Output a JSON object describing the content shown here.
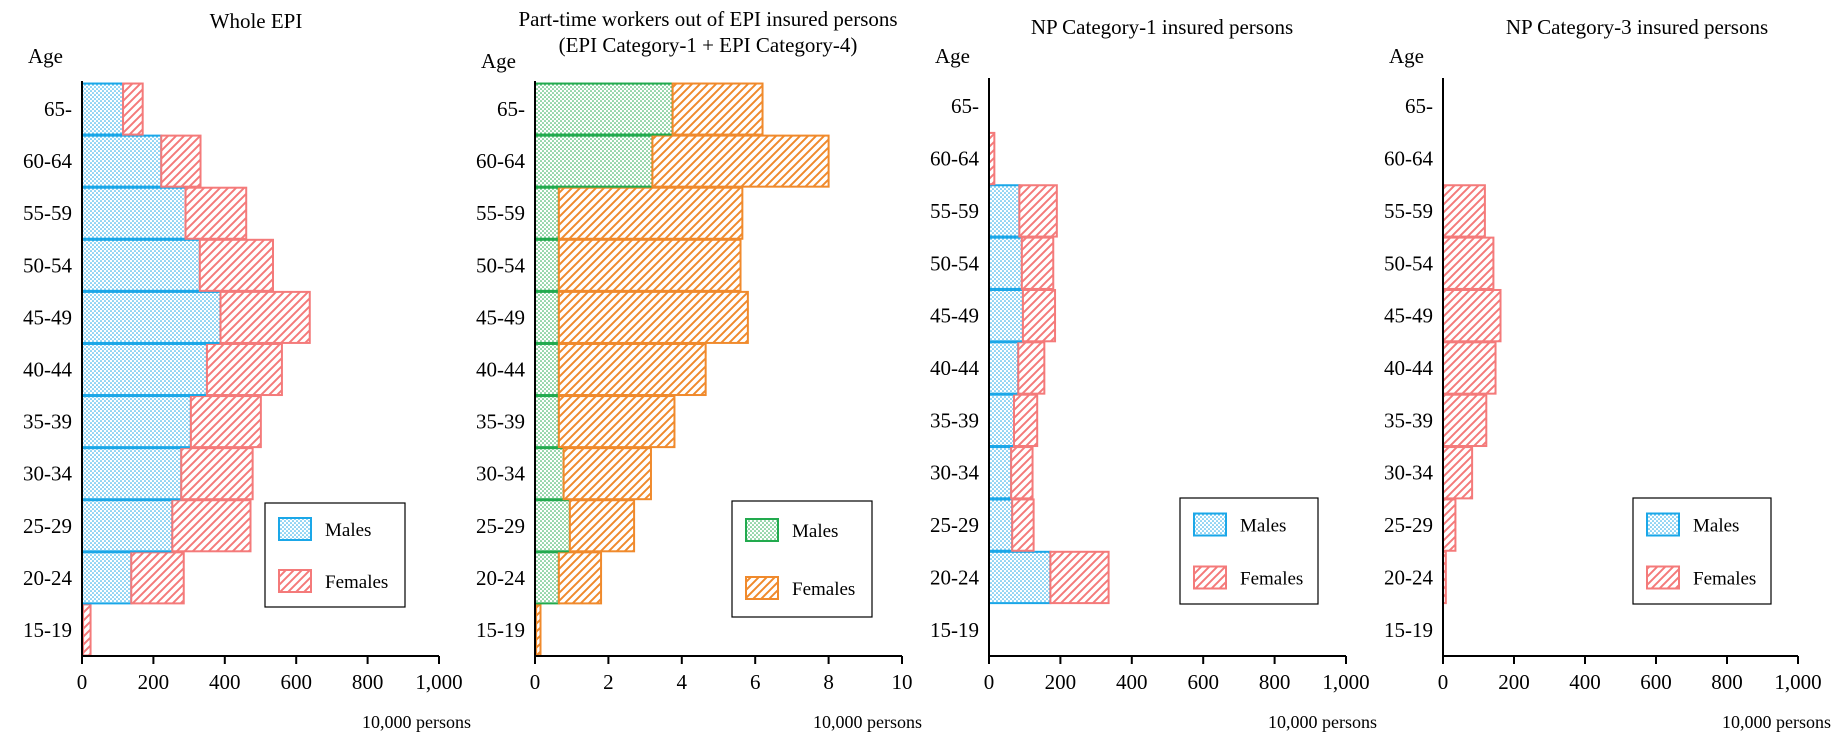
{
  "chart_data": [
    {
      "type": "bar",
      "orientation": "horizontal",
      "stacked": true,
      "title": "Whole EPI",
      "ylabel": "Age",
      "xlabel": "10,000  persons",
      "categories": [
        "15-19",
        "20-24",
        "25-29",
        "30-34",
        "35-39",
        "40-44",
        "45-49",
        "50-54",
        "55-59",
        "60-64",
        "65-"
      ],
      "xlim": [
        0,
        1000
      ],
      "xticks": [
        "0",
        "200",
        "400",
        "600",
        "800",
        "1,000"
      ],
      "legend_position": "lower-right",
      "series": [
        {
          "name": "Males",
          "color": "#1aa7e8",
          "pattern": "dots",
          "values": [
            3,
            138,
            253,
            278,
            305,
            350,
            388,
            330,
            290,
            222,
            115
          ]
        },
        {
          "name": "Females",
          "color": "#f47a7a",
          "pattern": "hatch",
          "values": [
            21,
            147,
            219,
            200,
            196,
            210,
            250,
            205,
            170,
            110,
            55
          ]
        }
      ]
    },
    {
      "type": "bar",
      "orientation": "horizontal",
      "stacked": true,
      "title": "Part-time workers out of EPI insured persons",
      "subtitle": "(EPI Category-1 + EPI Category-4)",
      "ylabel": "Age",
      "xlabel": "10,000 persons",
      "categories": [
        "15-19",
        "20-24",
        "25-29",
        "30-34",
        "35-39",
        "40-44",
        "45-49",
        "50-54",
        "55-59",
        "60-64",
        "65-"
      ],
      "xlim": [
        0,
        10
      ],
      "xticks": [
        "0",
        "2",
        "4",
        "6",
        "8",
        "10"
      ],
      "legend_position": "lower-right",
      "series": [
        {
          "name": "Males",
          "color": "#22aa4e",
          "pattern": "dots",
          "values": [
            0.03,
            0.65,
            0.95,
            0.78,
            0.65,
            0.65,
            0.65,
            0.65,
            0.65,
            3.2,
            3.75
          ]
        },
        {
          "name": "Females",
          "color": "#f08a2c",
          "pattern": "hatch",
          "values": [
            0.12,
            1.15,
            1.75,
            2.38,
            3.15,
            4.0,
            5.15,
            4.95,
            5.0,
            4.8,
            2.45
          ]
        }
      ]
    },
    {
      "type": "bar",
      "orientation": "horizontal",
      "stacked": true,
      "title": "NP Category-1 insured persons",
      "ylabel": "Age",
      "xlabel": "10,000 persons",
      "categories": [
        "15-19",
        "20-24",
        "25-29",
        "30-34",
        "35-39",
        "40-44",
        "45-49",
        "50-54",
        "55-59",
        "60-64",
        "65-"
      ],
      "xlim": [
        0,
        1000
      ],
      "xticks": [
        "0",
        "200",
        "400",
        "600",
        "800",
        "1,000"
      ],
      "legend_position": "lower-right",
      "series": [
        {
          "name": "Males",
          "color": "#1aa7e8",
          "pattern": "dots",
          "values": [
            0,
            172,
            65,
            62,
            70,
            82,
            95,
            92,
            85,
            0,
            0
          ]
        },
        {
          "name": "Females",
          "color": "#f47a7a",
          "pattern": "hatch",
          "values": [
            0,
            163,
            60,
            60,
            65,
            73,
            90,
            88,
            105,
            15,
            0
          ]
        }
      ]
    },
    {
      "type": "bar",
      "orientation": "horizontal",
      "stacked": true,
      "title": "NP Category-3 insured persons",
      "ylabel": "Age",
      "xlabel": "10,000 persons",
      "categories": [
        "15-19",
        "20-24",
        "25-29",
        "30-34",
        "35-39",
        "40-44",
        "45-49",
        "50-54",
        "55-59",
        "60-64",
        "65-"
      ],
      "xlim": [
        0,
        1000
      ],
      "xticks": [
        "0",
        "200",
        "400",
        "600",
        "800",
        "1,000"
      ],
      "legend_position": "lower-right",
      "series": [
        {
          "name": "Males",
          "color": "#1aa7e8",
          "pattern": "dots",
          "values": [
            0,
            0,
            0,
            0,
            0,
            0,
            0,
            0,
            0,
            0,
            0
          ]
        },
        {
          "name": "Females",
          "color": "#f47a7a",
          "pattern": "hatch",
          "values": [
            0,
            8,
            35,
            82,
            122,
            148,
            162,
            142,
            118,
            0,
            0
          ]
        }
      ]
    }
  ]
}
